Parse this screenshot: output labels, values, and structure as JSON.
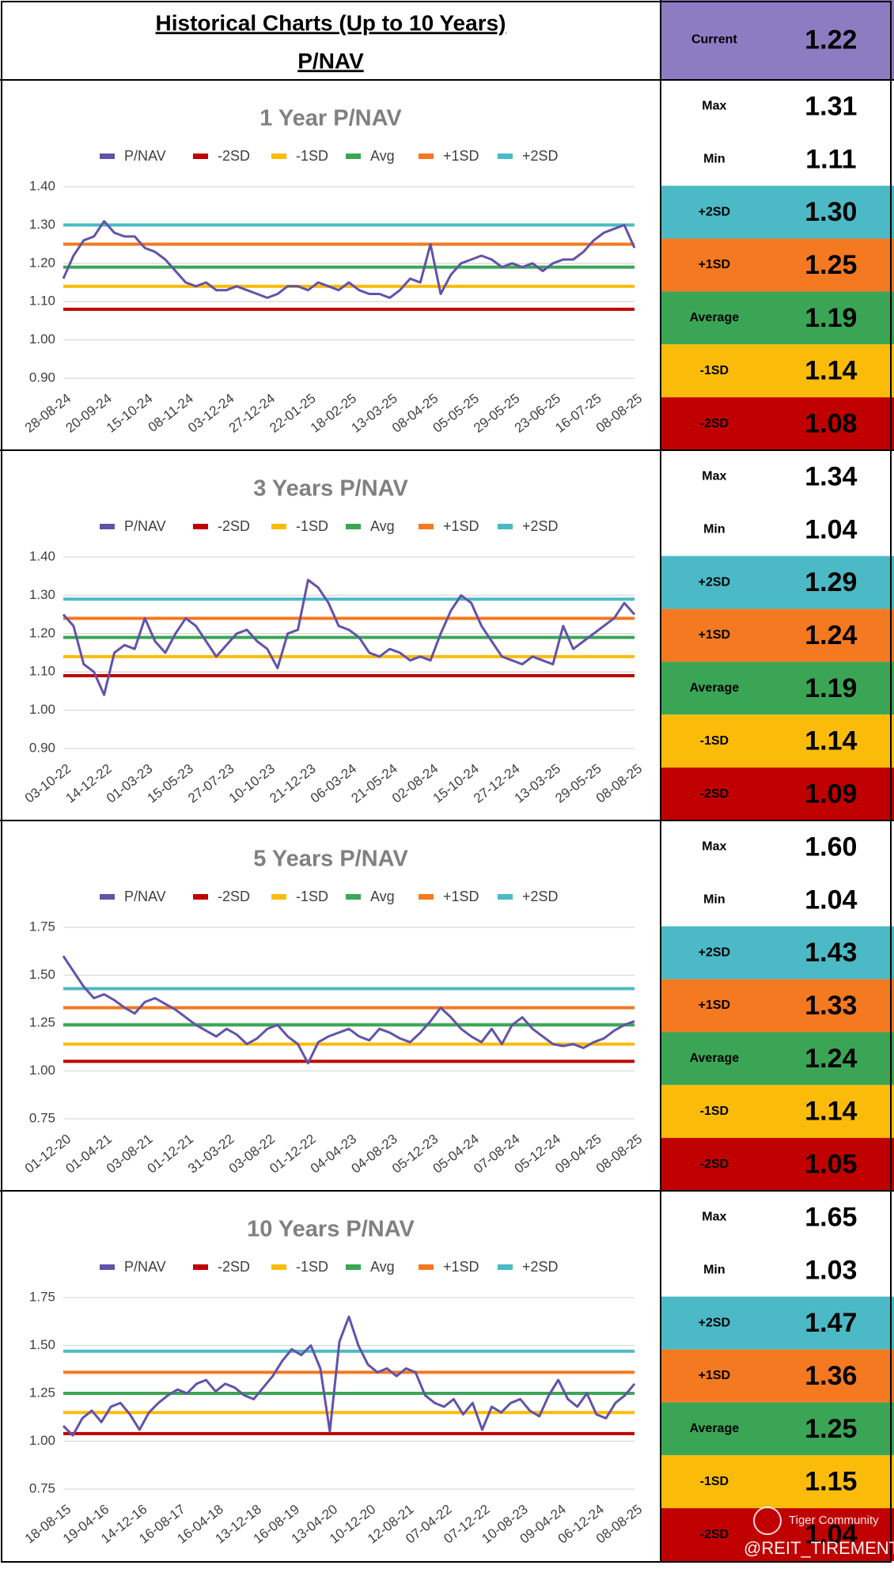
{
  "header": {
    "title": "Historical Charts (Up to 10 Years)",
    "subtitle": "P/NAV"
  },
  "current": {
    "label": "Current",
    "value": 1.22,
    "value_label": "1.22",
    "color": "#8e7cc3"
  },
  "watermark": [
    "Tiger Community",
    "@REIT_TIREMENT"
  ],
  "chart_data": [
    {
      "type": "line",
      "title": "1 Year P/NAV",
      "grid": true,
      "ylim": [
        0.9,
        1.4
      ],
      "yticks": [
        {
          "value": 0.9,
          "label": "0.90"
        },
        {
          "value": 1.0,
          "label": "1.00"
        },
        {
          "value": 1.1,
          "label": "1.10"
        },
        {
          "value": 1.2,
          "label": "1.20"
        },
        {
          "value": 1.3,
          "label": "1.30"
        },
        {
          "value": 1.4,
          "label": "1.40"
        }
      ],
      "categories": [
        "28-08-24",
        null,
        null,
        null,
        "20-09-24",
        null,
        null,
        null,
        "15-10-24",
        null,
        null,
        null,
        "08-11-24",
        null,
        null,
        null,
        "03-12-24",
        null,
        null,
        null,
        "27-12-24",
        null,
        null,
        null,
        "22-01-25",
        null,
        null,
        null,
        "18-02-25",
        null,
        null,
        null,
        "13-03-25",
        null,
        null,
        null,
        "08-04-25",
        null,
        null,
        null,
        "05-05-25",
        null,
        null,
        null,
        "29-05-25",
        null,
        null,
        null,
        "23-06-25",
        null,
        null,
        null,
        "16-07-25",
        null,
        null,
        null,
        "08-08-25"
      ],
      "series": [
        {
          "name": "P/NAV",
          "color": "#6352a8",
          "values": [
            1.16,
            1.22,
            1.26,
            1.27,
            1.31,
            1.28,
            1.27,
            1.27,
            1.24,
            1.23,
            1.21,
            1.18,
            1.15,
            1.14,
            1.15,
            1.13,
            1.13,
            1.14,
            1.13,
            1.12,
            1.11,
            1.12,
            1.14,
            1.14,
            1.13,
            1.15,
            1.14,
            1.13,
            1.15,
            1.13,
            1.12,
            1.12,
            1.11,
            1.13,
            1.16,
            1.15,
            1.25,
            1.12,
            1.17,
            1.2,
            1.21,
            1.22,
            1.21,
            1.19,
            1.2,
            1.19,
            1.2,
            1.18,
            1.2,
            1.21,
            1.21,
            1.23,
            1.26,
            1.28,
            1.29,
            1.3,
            1.24
          ]
        },
        {
          "name": "-2SD",
          "label": "-2SD",
          "color": "#c00000",
          "value": 1.08,
          "value_label": "1.08"
        },
        {
          "name": "-1SD",
          "label": "-1SD",
          "color": "#fbbc09",
          "value": 1.14,
          "value_label": "1.14"
        },
        {
          "name": "Avg",
          "label": "Average",
          "color": "#3aa655",
          "value": 1.19,
          "value_label": "1.19"
        },
        {
          "name": "+1SD",
          "label": "+1SD",
          "color": "#f47920",
          "value": 1.25,
          "value_label": "1.25"
        },
        {
          "name": "+2SD",
          "label": "+2SD",
          "color": "#4bbac6",
          "value": 1.3,
          "value_label": "1.30"
        }
      ],
      "stats": [
        {
          "label": "Max",
          "value": 1.31,
          "value_label": "1.31"
        },
        {
          "label": "Min",
          "value": 1.11,
          "value_label": "1.11"
        }
      ]
    },
    {
      "type": "line",
      "title": "3 Years P/NAV",
      "grid": true,
      "ylim": [
        0.9,
        1.4
      ],
      "yticks": [
        {
          "value": 0.9,
          "label": "0.90"
        },
        {
          "value": 1.0,
          "label": "1.00"
        },
        {
          "value": 1.1,
          "label": "1.10"
        },
        {
          "value": 1.2,
          "label": "1.20"
        },
        {
          "value": 1.3,
          "label": "1.30"
        },
        {
          "value": 1.4,
          "label": "1.40"
        }
      ],
      "categories": [
        "03-10-22",
        null,
        null,
        null,
        "14-12-22",
        null,
        null,
        null,
        "01-03-23",
        null,
        null,
        null,
        "15-05-23",
        null,
        null,
        null,
        "27-07-23",
        null,
        null,
        null,
        "10-10-23",
        null,
        null,
        null,
        "21-12-23",
        null,
        null,
        null,
        "06-03-24",
        null,
        null,
        null,
        "21-05-24",
        null,
        null,
        null,
        "02-08-24",
        null,
        null,
        null,
        "15-10-24",
        null,
        null,
        null,
        "27-12-24",
        null,
        null,
        null,
        "13-03-25",
        null,
        null,
        null,
        "29-05-25",
        null,
        null,
        null,
        "08-08-25"
      ],
      "series": [
        {
          "name": "P/NAV",
          "color": "#6352a8",
          "values": [
            1.25,
            1.22,
            1.12,
            1.1,
            1.04,
            1.15,
            1.17,
            1.16,
            1.24,
            1.18,
            1.15,
            1.2,
            1.24,
            1.22,
            1.18,
            1.14,
            1.17,
            1.2,
            1.21,
            1.18,
            1.16,
            1.11,
            1.2,
            1.21,
            1.34,
            1.32,
            1.28,
            1.22,
            1.21,
            1.19,
            1.15,
            1.14,
            1.16,
            1.15,
            1.13,
            1.14,
            1.13,
            1.2,
            1.26,
            1.3,
            1.28,
            1.22,
            1.18,
            1.14,
            1.13,
            1.12,
            1.14,
            1.13,
            1.12,
            1.22,
            1.16,
            1.18,
            1.2,
            1.22,
            1.24,
            1.28,
            1.25
          ]
        },
        {
          "name": "-2SD",
          "label": "-2SD",
          "color": "#c00000",
          "value": 1.09,
          "value_label": "1.09"
        },
        {
          "name": "-1SD",
          "label": "-1SD",
          "color": "#fbbc09",
          "value": 1.14,
          "value_label": "1.14"
        },
        {
          "name": "Avg",
          "label": "Average",
          "color": "#3aa655",
          "value": 1.19,
          "value_label": "1.19"
        },
        {
          "name": "+1SD",
          "label": "+1SD",
          "color": "#f47920",
          "value": 1.24,
          "value_label": "1.24"
        },
        {
          "name": "+2SD",
          "label": "+2SD",
          "color": "#4bbac6",
          "value": 1.29,
          "value_label": "1.29"
        }
      ],
      "stats": [
        {
          "label": "Max",
          "value": 1.34,
          "value_label": "1.34"
        },
        {
          "label": "Min",
          "value": 1.04,
          "value_label": "1.04"
        }
      ]
    },
    {
      "type": "line",
      "title": "5 Years P/NAV",
      "grid": true,
      "ylim": [
        0.75,
        1.75
      ],
      "yticks": [
        0.75,
        {
          "value": 1.0,
          "label": "1.00"
        },
        1.25,
        {
          "value": 1.5,
          "label": "1.50"
        },
        1.75
      ],
      "categories": [
        "01-12-20",
        null,
        null,
        null,
        "01-04-21",
        null,
        null,
        null,
        "03-08-21",
        null,
        null,
        null,
        "01-12-21",
        null,
        null,
        null,
        "31-03-22",
        null,
        null,
        null,
        "03-08-22",
        null,
        null,
        null,
        "01-12-22",
        null,
        null,
        null,
        "04-04-23",
        null,
        null,
        null,
        "04-08-23",
        null,
        null,
        null,
        "05-12-23",
        null,
        null,
        null,
        "05-04-24",
        null,
        null,
        null,
        "07-08-24",
        null,
        null,
        null,
        "05-12-24",
        null,
        null,
        null,
        "09-04-25",
        null,
        null,
        null,
        "08-08-25"
      ],
      "series": [
        {
          "name": "P/NAV",
          "color": "#6352a8",
          "values": [
            1.6,
            1.52,
            1.44,
            1.38,
            1.4,
            1.37,
            1.33,
            1.3,
            1.36,
            1.38,
            1.35,
            1.32,
            1.28,
            1.24,
            1.21,
            1.18,
            1.22,
            1.19,
            1.14,
            1.17,
            1.22,
            1.24,
            1.18,
            1.14,
            1.04,
            1.15,
            1.18,
            1.2,
            1.22,
            1.18,
            1.16,
            1.22,
            1.2,
            1.17,
            1.15,
            1.2,
            1.26,
            1.33,
            1.28,
            1.22,
            1.18,
            1.15,
            1.22,
            1.14,
            1.24,
            1.28,
            1.22,
            1.18,
            1.14,
            1.13,
            1.14,
            1.12,
            1.15,
            1.17,
            1.21,
            1.24,
            1.26
          ]
        },
        {
          "name": "-2SD",
          "label": "-2SD",
          "color": "#c00000",
          "value": 1.05,
          "value_label": "1.05"
        },
        {
          "name": "-1SD",
          "label": "-1SD",
          "color": "#fbbc09",
          "value": 1.14,
          "value_label": "1.14"
        },
        {
          "name": "Avg",
          "label": "Average",
          "color": "#3aa655",
          "value": 1.24,
          "value_label": "1.24"
        },
        {
          "name": "+1SD",
          "label": "+1SD",
          "color": "#f47920",
          "value": 1.33,
          "value_label": "1.33"
        },
        {
          "name": "+2SD",
          "label": "+2SD",
          "color": "#4bbac6",
          "value": 1.43,
          "value_label": "1.43"
        }
      ],
      "stats": [
        {
          "label": "Max",
          "value": 1.6,
          "value_label": "1.60"
        },
        {
          "label": "Min",
          "value": 1.04,
          "value_label": "1.04"
        }
      ]
    },
    {
      "type": "line",
      "title": "10 Years P/NAV",
      "grid": true,
      "ylim": [
        0.75,
        1.75
      ],
      "yticks": [
        0.75,
        {
          "value": 1.0,
          "label": "1.00"
        },
        1.25,
        {
          "value": 1.5,
          "label": "1.50"
        },
        1.75
      ],
      "categories": [
        "18-08-15",
        null,
        null,
        null,
        "19-04-16",
        null,
        null,
        null,
        "14-12-16",
        null,
        null,
        null,
        "16-08-17",
        null,
        null,
        null,
        "16-04-18",
        null,
        null,
        null,
        "13-12-18",
        null,
        null,
        null,
        "16-08-19",
        null,
        null,
        null,
        "13-04-20",
        null,
        null,
        null,
        "10-12-20",
        null,
        null,
        null,
        "12-08-21",
        null,
        null,
        null,
        "07-04-22",
        null,
        null,
        null,
        "07-12-22",
        null,
        null,
        null,
        "10-08-23",
        null,
        null,
        null,
        "09-04-24",
        null,
        null,
        null,
        "06-12-24",
        null,
        null,
        null,
        "08-08-25"
      ],
      "series": [
        {
          "name": "P/NAV",
          "color": "#6352a8",
          "values": [
            1.08,
            1.03,
            1.12,
            1.16,
            1.1,
            1.18,
            1.2,
            1.14,
            1.06,
            1.15,
            1.2,
            1.24,
            1.27,
            1.25,
            1.3,
            1.32,
            1.26,
            1.3,
            1.28,
            1.24,
            1.22,
            1.28,
            1.34,
            1.42,
            1.48,
            1.45,
            1.5,
            1.38,
            1.05,
            1.52,
            1.65,
            1.5,
            1.4,
            1.36,
            1.38,
            1.34,
            1.38,
            1.36,
            1.24,
            1.2,
            1.18,
            1.22,
            1.14,
            1.2,
            1.06,
            1.18,
            1.15,
            1.2,
            1.22,
            1.16,
            1.13,
            1.24,
            1.32,
            1.22,
            1.18,
            1.25,
            1.14,
            1.12,
            1.2,
            1.24,
            1.3
          ]
        },
        {
          "name": "-2SD",
          "label": "-2SD",
          "color": "#c00000",
          "value": 1.04,
          "value_label": "1.04"
        },
        {
          "name": "-1SD",
          "label": "-1SD",
          "color": "#fbbc09",
          "value": 1.15,
          "value_label": "1.15"
        },
        {
          "name": "Avg",
          "label": "Average",
          "color": "#3aa655",
          "value": 1.25,
          "value_label": "1.25"
        },
        {
          "name": "+1SD",
          "label": "+1SD",
          "color": "#f47920",
          "value": 1.36,
          "value_label": "1.36"
        },
        {
          "name": "+2SD",
          "label": "+2SD",
          "color": "#4bbac6",
          "value": 1.47,
          "value_label": "1.47"
        }
      ],
      "stats": [
        {
          "label": "Max",
          "value": 1.65,
          "value_label": "1.65"
        },
        {
          "label": "Min",
          "value": 1.03,
          "value_label": "1.03"
        }
      ]
    }
  ]
}
